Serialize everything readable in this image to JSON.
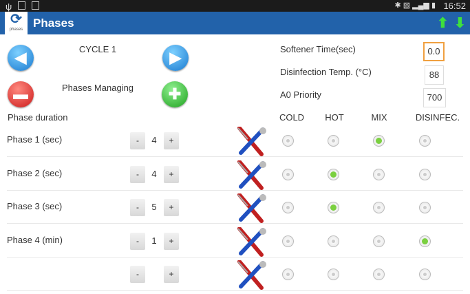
{
  "status_bar": {
    "time": "16:52"
  },
  "app_bar": {
    "logo_label": "phases",
    "title": "Phases",
    "colors": {
      "bar": "#2262aa",
      "arrows": "#3ee03e"
    }
  },
  "cycle": {
    "label": "CYCLE 1",
    "managing_label": "Phases Managing"
  },
  "settings": [
    {
      "label": "Softener Time(sec)",
      "value": "0.0"
    },
    {
      "label": "Disinfection Temp. (°C)",
      "value": "88"
    },
    {
      "label": "A0 Priority",
      "value": "700"
    }
  ],
  "phase_duration_label": "Phase duration",
  "columns": [
    "COLD",
    "HOT",
    "MIX",
    "DISINFEC."
  ],
  "phases": [
    {
      "name": "Phase 1 (sec)",
      "value": "4",
      "selected": "MIX"
    },
    {
      "name": "Phase 2 (sec)",
      "value": "4",
      "selected": "HOT"
    },
    {
      "name": "Phase 3 (sec)",
      "value": "5",
      "selected": "HOT"
    },
    {
      "name": "Phase 4 (min)",
      "value": "1",
      "selected": "DISINFEC."
    }
  ],
  "stepper": {
    "minus": "-",
    "plus": "+"
  }
}
